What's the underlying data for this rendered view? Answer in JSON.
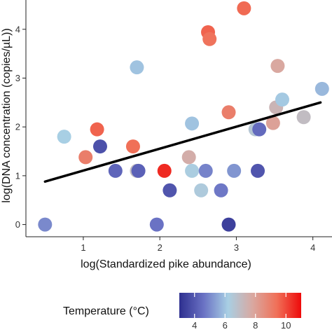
{
  "chart_data": {
    "type": "scatter",
    "xlabel": "log(Standardized pike abundance)",
    "ylabel": "log(DNA concentration (copies/µL))",
    "xlim": [
      0.25,
      4.25
    ],
    "ylim": [
      -0.25,
      4.6
    ],
    "x_ticks": [
      1,
      2,
      3,
      4
    ],
    "y_ticks": [
      0,
      1,
      2,
      3,
      4
    ],
    "grid": false,
    "trendline": {
      "x": [
        0.5,
        4.1
      ],
      "y": [
        0.88,
        2.5
      ],
      "color": "#000000"
    },
    "points": [
      {
        "x": 0.5,
        "y": 0.0,
        "temperature": 5.0
      },
      {
        "x": 0.75,
        "y": 1.8,
        "temperature": 6.2
      },
      {
        "x": 1.03,
        "y": 1.38,
        "temperature": 9.0
      },
      {
        "x": 1.18,
        "y": 1.95,
        "temperature": 9.6
      },
      {
        "x": 1.22,
        "y": 1.6,
        "temperature": 3.8
      },
      {
        "x": 1.42,
        "y": 1.1,
        "temperature": 4.3
      },
      {
        "x": 1.65,
        "y": 1.6,
        "temperature": 9.4
      },
      {
        "x": 1.7,
        "y": 3.22,
        "temperature": 6.0
      },
      {
        "x": 1.7,
        "y": 1.1,
        "temperature": 7.0
      },
      {
        "x": 1.72,
        "y": 1.1,
        "temperature": 4.2
      },
      {
        "x": 1.96,
        "y": 0.0,
        "temperature": 4.6
      },
      {
        "x": 2.06,
        "y": 1.1,
        "temperature": 10.5
      },
      {
        "x": 2.13,
        "y": 0.7,
        "temperature": 3.9
      },
      {
        "x": 2.38,
        "y": 1.38,
        "temperature": 7.6
      },
      {
        "x": 2.42,
        "y": 2.07,
        "temperature": 6.0
      },
      {
        "x": 2.42,
        "y": 1.1,
        "temperature": 6.3
      },
      {
        "x": 2.54,
        "y": 0.7,
        "temperature": 6.4
      },
      {
        "x": 2.6,
        "y": 1.1,
        "temperature": 4.9
      },
      {
        "x": 2.63,
        "y": 3.94,
        "temperature": 9.6
      },
      {
        "x": 2.65,
        "y": 3.8,
        "temperature": 9.3
      },
      {
        "x": 2.8,
        "y": 0.7,
        "temperature": 4.7
      },
      {
        "x": 2.9,
        "y": 0.0,
        "temperature": 3.4
      },
      {
        "x": 2.9,
        "y": 2.3,
        "temperature": 9.0
      },
      {
        "x": 2.97,
        "y": 1.1,
        "temperature": 5.2
      },
      {
        "x": 3.1,
        "y": 4.43,
        "temperature": 9.5
      },
      {
        "x": 3.25,
        "y": 1.95,
        "temperature": 6.6
      },
      {
        "x": 3.28,
        "y": 1.1,
        "temperature": 3.9
      },
      {
        "x": 3.3,
        "y": 1.95,
        "temperature": 4.4
      },
      {
        "x": 3.48,
        "y": 2.08,
        "temperature": 8.0
      },
      {
        "x": 3.52,
        "y": 2.4,
        "temperature": 7.3
      },
      {
        "x": 3.54,
        "y": 3.25,
        "temperature": 7.8
      },
      {
        "x": 3.6,
        "y": 2.56,
        "temperature": 6.1
      },
      {
        "x": 3.88,
        "y": 2.2,
        "temperature": 7.0
      },
      {
        "x": 4.12,
        "y": 2.78,
        "temperature": 5.8
      }
    ],
    "legend": {
      "title": "Temperature (°C)",
      "placement": "bottom",
      "range": [
        3,
        11
      ],
      "ticks": [
        "4",
        "6",
        "8",
        "10"
      ],
      "tick_values": [
        4,
        6,
        8,
        10
      ],
      "colors": [
        "#2e2f8f",
        "#6a72c4",
        "#a8cfe4",
        "#d9a8a0",
        "#f07058",
        "#ee0a0a"
      ]
    }
  }
}
